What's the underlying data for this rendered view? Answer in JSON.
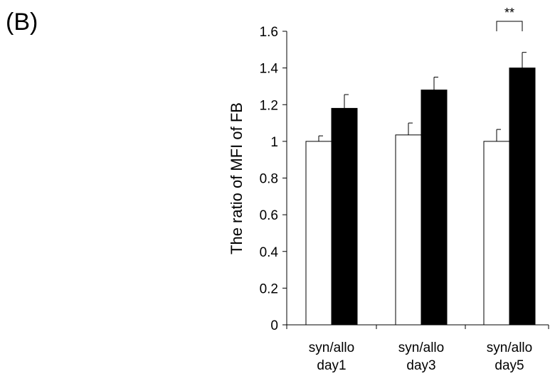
{
  "panel_label": "(B)",
  "chart_data": {
    "type": "bar",
    "title": "",
    "xlabel": "",
    "ylabel": "The ratio of MFI of FB",
    "ylim": [
      0,
      1.6
    ],
    "yticks": [
      0,
      0.2,
      0.4,
      0.6,
      0.8,
      1,
      1.2,
      1.4,
      1.6
    ],
    "ytick_labels": [
      "0",
      "0.2",
      "0.4",
      "0.6",
      "0.8",
      "1",
      "1.2",
      "1.4",
      "1.6"
    ],
    "grid": false,
    "legend": "none",
    "categories": [
      [
        "syn/allo",
        "day1"
      ],
      [
        "syn/allo",
        "day3"
      ],
      [
        "syn/allo",
        "day5"
      ]
    ],
    "series": [
      {
        "color": "#ffffff",
        "values": [
          1.0,
          1.035,
          1.0
        ],
        "errors": [
          0.03,
          0.065,
          0.065
        ]
      },
      {
        "color": "#000000",
        "values": [
          1.18,
          1.28,
          1.4
        ],
        "errors": [
          0.075,
          0.07,
          0.085
        ]
      }
    ],
    "annotations": [
      {
        "text": "**",
        "category_index": 2
      }
    ]
  }
}
